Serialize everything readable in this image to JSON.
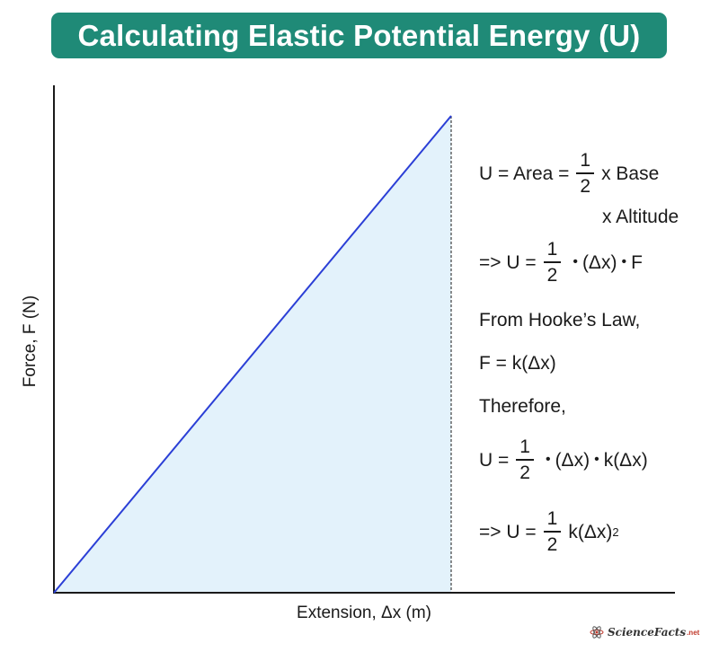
{
  "title": "Calculating Elastic Potential Energy (U)",
  "axes": {
    "ylabel": "Force, F (N)",
    "xlabel": "Extension, Δx (m)"
  },
  "colors": {
    "banner": "#1f8a77",
    "line": "#2b3fd6",
    "fill": "#e3f2fb"
  },
  "equations": {
    "eq1_lhs": "U = Area =",
    "eq1_num": "1",
    "eq1_den": "2",
    "eq1_rhs": "x Base",
    "eq1_cont": "x Altitude",
    "eq2_lhs": "=> U =",
    "eq2_num": "1",
    "eq2_den": "2",
    "eq2_t1": "(Δx)",
    "eq2_t2": "F",
    "hooke_intro": "From Hooke’s Law,",
    "hooke_eq": "F = k(Δx)",
    "therefore": "Therefore,",
    "eq3_lhs": "U =",
    "eq3_num": "1",
    "eq3_den": "2",
    "eq3_t1": "(Δx)",
    "eq3_t2": "k(Δx)",
    "eq4_lhs": "=> U =",
    "eq4_num": "1",
    "eq4_den": "2",
    "eq4_rhs": "k(Δx)",
    "eq4_sup": "2",
    "dot": "•"
  },
  "brand": {
    "name": "ScienceFacts",
    "suffix": ".net",
    "icon": "atom-icon"
  }
}
